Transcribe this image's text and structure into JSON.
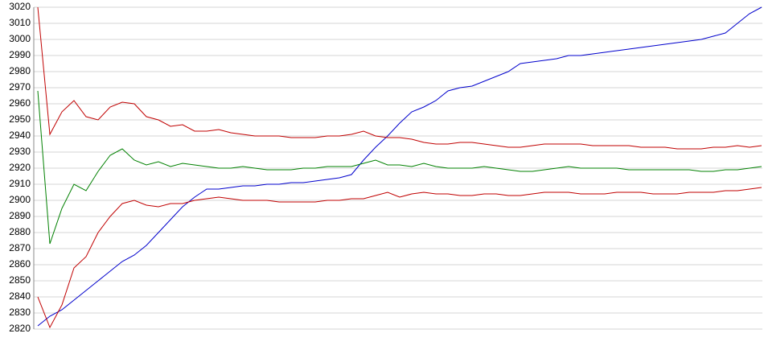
{
  "chart_data": {
    "type": "line",
    "ylim": [
      2820,
      3020
    ],
    "yticks": [
      2820,
      2830,
      2840,
      2850,
      2860,
      2870,
      2880,
      2890,
      2900,
      2910,
      2920,
      2930,
      2940,
      2950,
      2960,
      2970,
      2980,
      2990,
      3000,
      3010,
      3020
    ],
    "grid": true,
    "series": [
      {
        "color": "#0000cc",
        "values": [
          2822,
          2828,
          2832,
          2838,
          2844,
          2850,
          2856,
          2862,
          2866,
          2872,
          2880,
          2888,
          2896,
          2902,
          2907,
          2907,
          2908,
          2909,
          2909,
          2910,
          2910,
          2911,
          2911,
          2912,
          2913,
          2914,
          2916,
          2925,
          2933,
          2940,
          2948,
          2955,
          2958,
          2962,
          2968,
          2970,
          2971,
          2974,
          2977,
          2980,
          2985,
          2986,
          2987,
          2988,
          2990,
          2990,
          2991,
          2992,
          2993,
          2994,
          2995,
          2996,
          2997,
          2998,
          2999,
          3000,
          3002,
          3004,
          3010,
          3016,
          3020
        ]
      },
      {
        "color": "#008000",
        "values": [
          2968,
          2873,
          2895,
          2910,
          2906,
          2918,
          2928,
          2932,
          2925,
          2922,
          2924,
          2921,
          2923,
          2922,
          2921,
          2920,
          2920,
          2921,
          2920,
          2919,
          2919,
          2919,
          2920,
          2920,
          2921,
          2921,
          2921,
          2923,
          2925,
          2922,
          2922,
          2921,
          2923,
          2921,
          2920,
          2920,
          2920,
          2921,
          2920,
          2919,
          2918,
          2918,
          2919,
          2920,
          2921,
          2920,
          2920,
          2920,
          2920,
          2919,
          2919,
          2919,
          2919,
          2919,
          2919,
          2918,
          2918,
          2919,
          2919,
          2920,
          2921
        ]
      },
      {
        "color": "#c00000",
        "values": [
          3020,
          2941,
          2955,
          2962,
          2952,
          2950,
          2958,
          2961,
          2960,
          2952,
          2950,
          2946,
          2947,
          2943,
          2943,
          2944,
          2942,
          2941,
          2940,
          2940,
          2940,
          2939,
          2939,
          2939,
          2940,
          2940,
          2941,
          2943,
          2940,
          2939,
          2939,
          2938,
          2936,
          2935,
          2935,
          2936,
          2936,
          2935,
          2934,
          2933,
          2933,
          2934,
          2935,
          2935,
          2935,
          2935,
          2934,
          2934,
          2934,
          2934,
          2933,
          2933,
          2933,
          2932,
          2932,
          2932,
          2933,
          2933,
          2934,
          2933,
          2934
        ]
      },
      {
        "color": "#c00000",
        "values": [
          2840,
          2821,
          2835,
          2858,
          2865,
          2880,
          2890,
          2898,
          2900,
          2897,
          2896,
          2898,
          2898,
          2900,
          2901,
          2902,
          2901,
          2900,
          2900,
          2900,
          2899,
          2899,
          2899,
          2899,
          2900,
          2900,
          2901,
          2901,
          2903,
          2905,
          2902,
          2904,
          2905,
          2904,
          2904,
          2903,
          2903,
          2904,
          2904,
          2903,
          2903,
          2904,
          2905,
          2905,
          2905,
          2904,
          2904,
          2904,
          2905,
          2905,
          2905,
          2904,
          2904,
          2904,
          2905,
          2905,
          2905,
          2906,
          2906,
          2907,
          2908
        ]
      }
    ]
  }
}
